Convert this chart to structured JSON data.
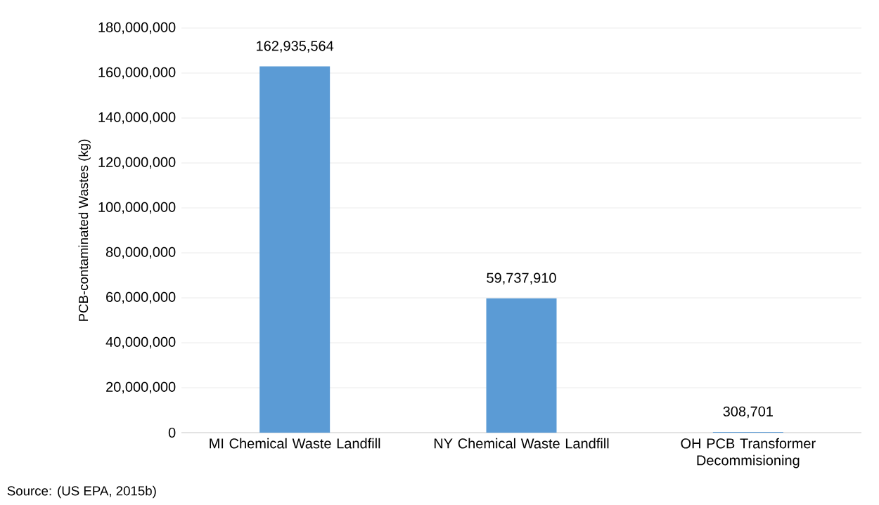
{
  "chart_data": {
    "type": "bar",
    "ylabel": "PCB-contaminated Wastes (kg)",
    "categories": [
      "MI Chemical Waste Landfill",
      "NY Chemical Waste Landfill",
      "OH PCB Transformer Decommisioning"
    ],
    "values": [
      162935564,
      59737910,
      308701
    ],
    "value_labels": [
      "162,935,564",
      "59,737,910",
      "308,701"
    ],
    "color": "#5b9bd5",
    "ylim": [
      0,
      180000000
    ],
    "yticks": [
      {
        "value": 0,
        "label": "0"
      },
      {
        "value": 20000000,
        "label": "20,000,000"
      },
      {
        "value": 40000000,
        "label": "40,000,000"
      },
      {
        "value": 60000000,
        "label": "60,000,000"
      },
      {
        "value": 80000000,
        "label": "80,000,000"
      },
      {
        "value": 100000000,
        "label": "100,000,000"
      },
      {
        "value": 120000000,
        "label": "120,000,000"
      },
      {
        "value": 140000000,
        "label": "140,000,000"
      },
      {
        "value": 160000000,
        "label": "160,000,000"
      },
      {
        "value": 180000000,
        "label": "180,000,000"
      }
    ],
    "grid": "y",
    "annotations": [
      "Source: (US EPA, 2015b)"
    ]
  }
}
